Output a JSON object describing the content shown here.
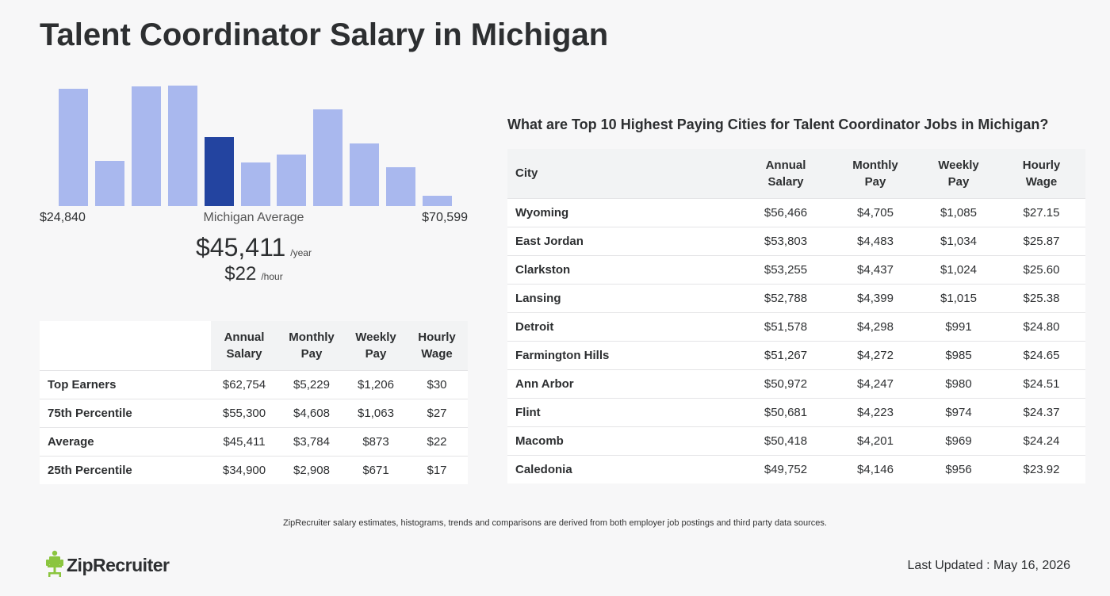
{
  "title": "Talent Coordinator Salary in Michigan",
  "histogram": {
    "min_label": "$24,840",
    "mid_label": "Michigan Average",
    "max_label": "$70,599",
    "values": [
      148,
      57,
      151,
      152,
      87,
      55,
      65,
      122,
      79,
      49,
      13
    ],
    "active_index": 4,
    "colors": {
      "bar": "#a9b8ee",
      "active": "#2344a0"
    }
  },
  "average": {
    "year_value": "$45,411",
    "year_unit": "/year",
    "hour_value": "$22",
    "hour_unit": "/hour"
  },
  "percentile_table": {
    "headers": [
      {
        "line1": "Annual",
        "line2": "Salary"
      },
      {
        "line1": "Monthly",
        "line2": "Pay"
      },
      {
        "line1": "Weekly",
        "line2": "Pay"
      },
      {
        "line1": "Hourly",
        "line2": "Wage"
      }
    ],
    "rows": [
      {
        "label": "Top Earners",
        "annual": "$62,754",
        "monthly": "$5,229",
        "weekly": "$1,206",
        "hourly": "$30"
      },
      {
        "label": "75th Percentile",
        "annual": "$55,300",
        "monthly": "$4,608",
        "weekly": "$1,063",
        "hourly": "$27"
      },
      {
        "label": "Average",
        "annual": "$45,411",
        "monthly": "$3,784",
        "weekly": "$873",
        "hourly": "$22"
      },
      {
        "label": "25th Percentile",
        "annual": "$34,900",
        "monthly": "$2,908",
        "weekly": "$671",
        "hourly": "$17"
      }
    ]
  },
  "cities": {
    "title": "What are Top 10 Highest Paying Cities for Talent Coordinator Jobs in Michigan?",
    "headers": [
      {
        "line1": "City",
        "line2": ""
      },
      {
        "line1": "Annual",
        "line2": "Salary"
      },
      {
        "line1": "Monthly",
        "line2": "Pay"
      },
      {
        "line1": "Weekly",
        "line2": "Pay"
      },
      {
        "line1": "Hourly",
        "line2": "Wage"
      }
    ],
    "rows": [
      {
        "city": "Wyoming",
        "annual": "$56,466",
        "monthly": "$4,705",
        "weekly": "$1,085",
        "hourly": "$27.15"
      },
      {
        "city": "East Jordan",
        "annual": "$53,803",
        "monthly": "$4,483",
        "weekly": "$1,034",
        "hourly": "$25.87"
      },
      {
        "city": "Clarkston",
        "annual": "$53,255",
        "monthly": "$4,437",
        "weekly": "$1,024",
        "hourly": "$25.60"
      },
      {
        "city": "Lansing",
        "annual": "$52,788",
        "monthly": "$4,399",
        "weekly": "$1,015",
        "hourly": "$25.38"
      },
      {
        "city": "Detroit",
        "annual": "$51,578",
        "monthly": "$4,298",
        "weekly": "$991",
        "hourly": "$24.80"
      },
      {
        "city": "Farmington Hills",
        "annual": "$51,267",
        "monthly": "$4,272",
        "weekly": "$985",
        "hourly": "$24.65"
      },
      {
        "city": "Ann Arbor",
        "annual": "$50,972",
        "monthly": "$4,247",
        "weekly": "$980",
        "hourly": "$24.51"
      },
      {
        "city": "Flint",
        "annual": "$50,681",
        "monthly": "$4,223",
        "weekly": "$974",
        "hourly": "$24.37"
      },
      {
        "city": "Macomb",
        "annual": "$50,418",
        "monthly": "$4,201",
        "weekly": "$969",
        "hourly": "$24.24"
      },
      {
        "city": "Caledonia",
        "annual": "$49,752",
        "monthly": "$4,146",
        "weekly": "$956",
        "hourly": "$23.92"
      }
    ]
  },
  "footer": {
    "disclaimer": "ZipRecruiter salary estimates, histograms, trends and comparisons are derived from both employer job postings and third party data sources.",
    "logo_text": "ZipRecruiter",
    "logo_icon": "ziprecruiter-chair-icon",
    "last_updated": "Last Updated : May 16, 2026",
    "brand_color": "#8bc53f"
  }
}
